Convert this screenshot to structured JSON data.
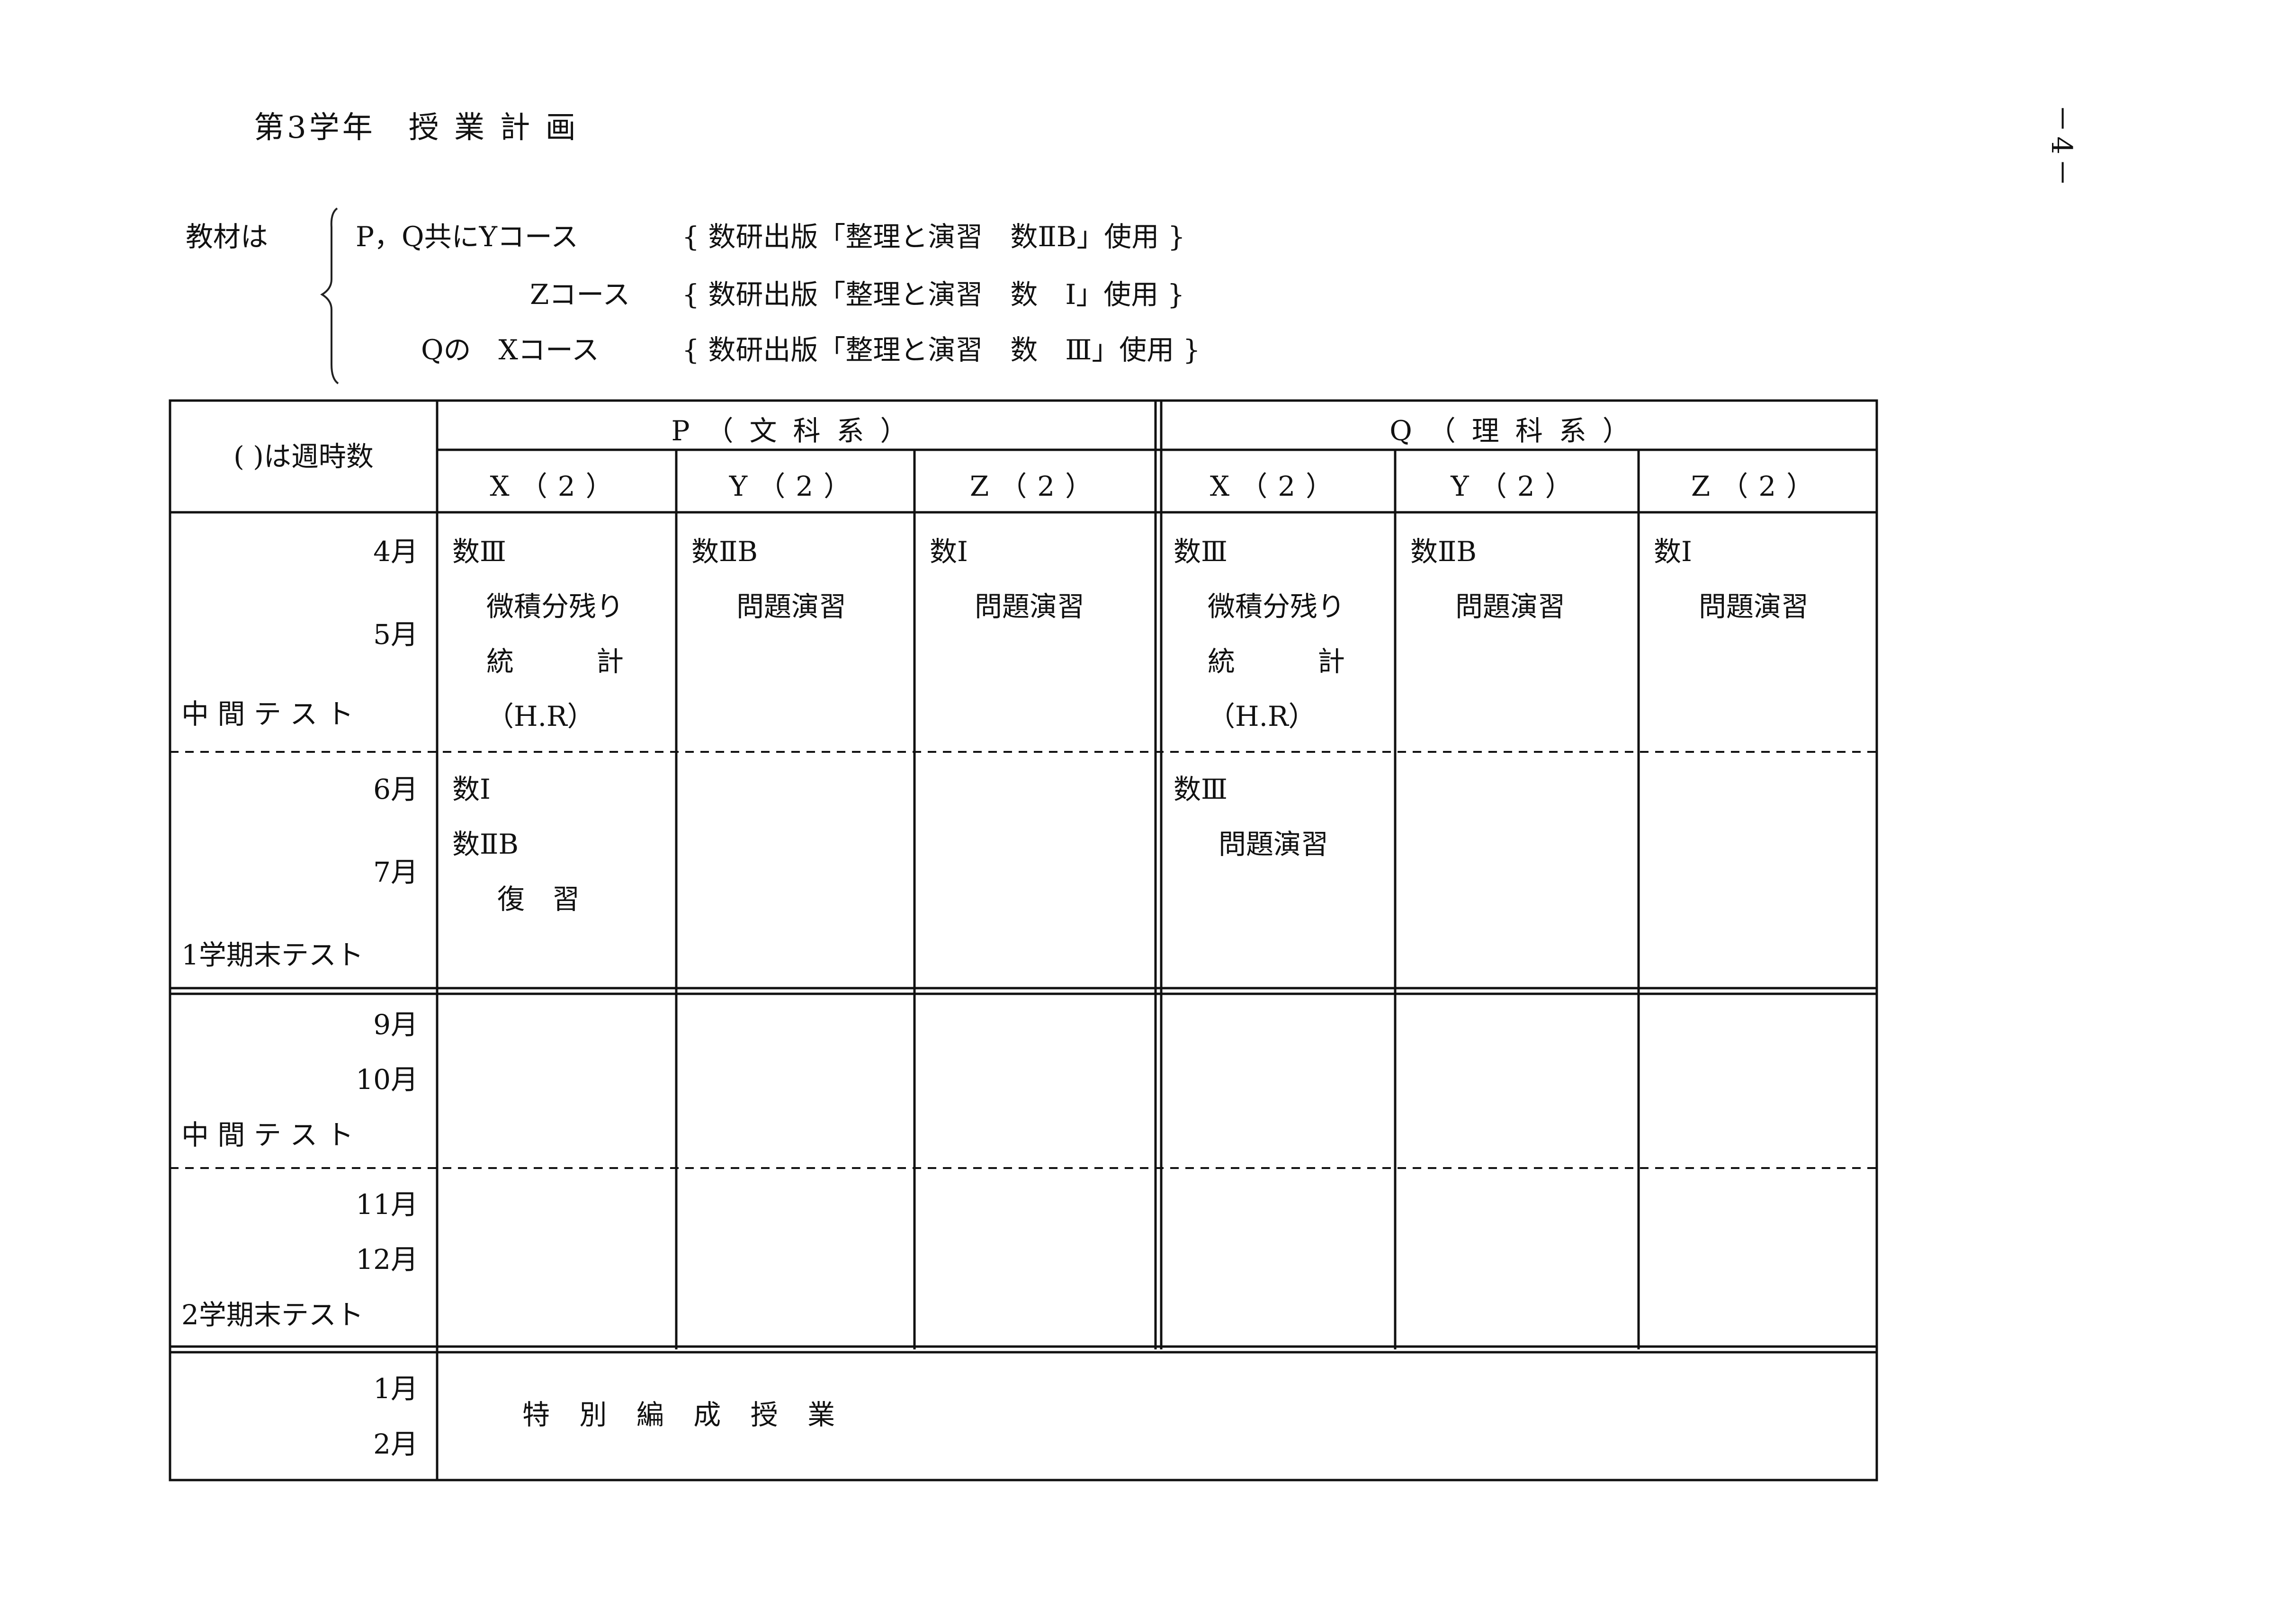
{
  "page_number": "－4－",
  "title": "第3学年　授 業 計 画",
  "materials": {
    "label": "教材は",
    "lines": [
      {
        "prefix": "P，Q共にYコース",
        "text": "{ 数研出版「整理と演習　数ⅡB」使用 }"
      },
      {
        "prefix": "Zコース",
        "text": "{ 数研出版「整理と演習　数　Ⅰ」使用 }"
      },
      {
        "prefix": "Qの　Xコース",
        "text": "{ 数研出版「整理と演習　数　Ⅲ」使用 }"
      }
    ]
  },
  "table": {
    "corner": "( )は週時数",
    "groups": [
      "P（文科系）",
      "Q（理科系）"
    ],
    "columns": [
      "X（2）",
      "Y（2）",
      "Z（2）",
      "X（2）",
      "Y（2）",
      "Z（2）"
    ],
    "rows": [
      {
        "labels": [
          "4月",
          "5月",
          "中 間 テ ス ト"
        ],
        "cells": [
          [
            "数Ⅲ",
            "微積分残り",
            "統　　　計",
            "（H.R）"
          ],
          [
            "数ⅡB",
            "問題演習"
          ],
          [
            "数Ⅰ",
            "問題演習"
          ],
          [
            "数Ⅲ",
            "微積分残り",
            "統　　　計",
            "（H.R）"
          ],
          [
            "数ⅡB",
            "問題演習"
          ],
          [
            "数Ⅰ",
            "問題演習"
          ]
        ]
      },
      {
        "labels": [
          "6月",
          "7月",
          "1学期末テスト"
        ],
        "cells": [
          [
            "数Ⅰ",
            "数ⅡB",
            "復　習"
          ],
          [],
          [],
          [
            "数Ⅲ",
            "問題演習"
          ],
          [],
          []
        ]
      },
      {
        "labels": [
          "9月",
          "10月",
          "中 間 テ ス ト"
        ],
        "cells": [
          [],
          [],
          [],
          [],
          [],
          []
        ]
      },
      {
        "labels": [
          "11月",
          "12月",
          "2学期末テスト"
        ],
        "cells": [
          [],
          [],
          [],
          [],
          [],
          []
        ]
      },
      {
        "labels": [
          "1月",
          "2月"
        ],
        "special": "特 別 編 成 授 業"
      }
    ]
  }
}
